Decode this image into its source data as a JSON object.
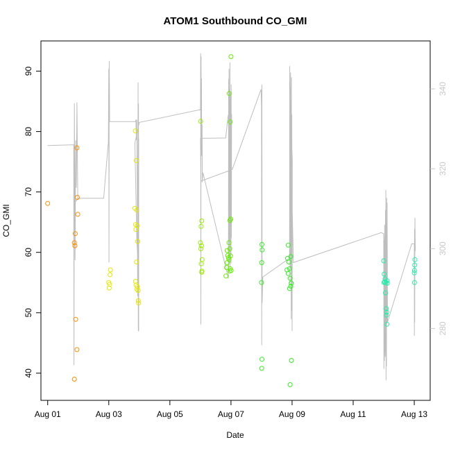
{
  "chart_data": {
    "type": "scatter",
    "title": "ATOM1 Southbound CO_GMI",
    "xlabel": "Date",
    "ylabel": "CO_GMI",
    "x_ticks": [
      "Aug 01",
      "Aug 03",
      "Aug 05",
      "Aug 07",
      "Aug 09",
      "Aug 11",
      "Aug 13"
    ],
    "y_ticks": [
      40,
      50,
      60,
      70,
      80,
      90
    ],
    "right_y_ticks": [
      280,
      300,
      320,
      340
    ],
    "xlim": [
      "2016-07-31T18:42",
      "2016-08-13T12:30"
    ],
    "ylim": [
      35.5,
      95
    ],
    "right_ylim": [
      262,
      352
    ],
    "grid": false,
    "colors": {
      "axis": "#000000",
      "line": "#bebebe",
      "right_axis": "#c8c8c8"
    },
    "series": [
      {
        "color": "#ff8c00",
        "points": [
          [
            "2016-08-01T00:00",
            68.1
          ],
          [
            "2016-08-01T21:00",
            61.6
          ],
          [
            "2016-08-01T21:20",
            61.1
          ],
          [
            "2016-08-01T21:40",
            63.1
          ],
          [
            "2016-08-01T22:00",
            48.9
          ],
          [
            "2016-08-01T23:00",
            77.3
          ],
          [
            "2016-08-01T23:20",
            69.1
          ],
          [
            "2016-08-01T23:40",
            66.3
          ],
          [
            "2016-08-01T23:00",
            43.9
          ],
          [
            "2016-08-01T21:00",
            39.0
          ]
        ]
      },
      {
        "color": "#e6e600",
        "points": [
          [
            "2016-08-03T00:00",
            55.0
          ],
          [
            "2016-08-03T00:20",
            54.1
          ],
          [
            "2016-08-03T00:40",
            54.7
          ],
          [
            "2016-08-03T01:00",
            56.3
          ],
          [
            "2016-08-03T01:20",
            57.1
          ],
          [
            "2016-08-03T20:30",
            67.3
          ],
          [
            "2016-08-03T21:00",
            64.6
          ],
          [
            "2016-08-03T21:20",
            63.8
          ],
          [
            "2016-08-03T21:40",
            75.2
          ],
          [
            "2016-08-03T20:50",
            80.1
          ],
          [
            "2016-08-03T22:00",
            67.0
          ],
          [
            "2016-08-03T22:20",
            64.4
          ],
          [
            "2016-08-03T22:40",
            61.8
          ],
          [
            "2016-08-03T21:50",
            58.4
          ],
          [
            "2016-08-03T21:00",
            55.2
          ],
          [
            "2016-08-03T21:30",
            54.6
          ],
          [
            "2016-08-03T22:00",
            53.9
          ],
          [
            "2016-08-03T22:30",
            54.3
          ],
          [
            "2016-08-03T23:00",
            53.7
          ],
          [
            "2016-08-03T23:10",
            52.0
          ],
          [
            "2016-08-03T23:20",
            51.6
          ]
        ]
      },
      {
        "color": "#99ee00",
        "points": [
          [
            "2016-08-06T00:00",
            61.6
          ],
          [
            "2016-08-06T00:20",
            60.6
          ],
          [
            "2016-08-06T00:40",
            58.1
          ],
          [
            "2016-08-06T01:00",
            56.7
          ],
          [
            "2016-08-06T01:10",
            56.9
          ],
          [
            "2016-08-06T01:20",
            58.8
          ],
          [
            "2016-08-06T00:30",
            64.3
          ],
          [
            "2016-08-06T01:00",
            65.2
          ],
          [
            "2016-08-06T00:50",
            61.1
          ],
          [
            "2016-08-06T00:10",
            81.7
          ]
        ]
      },
      {
        "color": "#66ee00",
        "points": [
          [
            "2016-08-06T20:00",
            56.1
          ],
          [
            "2016-08-06T20:30",
            57.5
          ],
          [
            "2016-08-06T21:00",
            58.3
          ],
          [
            "2016-08-06T21:30",
            59.5
          ],
          [
            "2016-08-06T21:00",
            60.3
          ],
          [
            "2016-08-06T22:00",
            59.1
          ],
          [
            "2016-08-06T22:30",
            58.8
          ],
          [
            "2016-08-06T23:00",
            56.9
          ],
          [
            "2016-08-06T23:20",
            57.3
          ],
          [
            "2016-08-06T23:40",
            59.4
          ],
          [
            "2016-08-06T23:00",
            60.6
          ],
          [
            "2016-08-06T22:30",
            61.6
          ],
          [
            "2016-08-06T23:10",
            65.3
          ],
          [
            "2016-08-06T23:50",
            65.5
          ],
          [
            "2016-08-06T22:40",
            86.3
          ],
          [
            "2016-08-06T23:20",
            81.6
          ],
          [
            "2016-08-07T00:00",
            92.4
          ],
          [
            "2016-08-07T00:10",
            57.0
          ]
        ]
      },
      {
        "color": "#33ee22",
        "points": [
          [
            "2016-08-08T00:00",
            55.0
          ],
          [
            "2016-08-08T00:10",
            58.3
          ],
          [
            "2016-08-08T00:20",
            61.3
          ],
          [
            "2016-08-08T00:30",
            60.4
          ],
          [
            "2016-08-08T00:20",
            42.3
          ],
          [
            "2016-08-08T00:10",
            40.8
          ],
          [
            "2016-08-08T20:00",
            57.1
          ],
          [
            "2016-08-08T20:30",
            59.0
          ],
          [
            "2016-08-08T21:00",
            61.2
          ],
          [
            "2016-08-08T21:30",
            58.4
          ],
          [
            "2016-08-08T21:00",
            56.5
          ],
          [
            "2016-08-08T22:00",
            57.3
          ],
          [
            "2016-08-08T22:30",
            55.7
          ],
          [
            "2016-08-08T23:00",
            54.4
          ],
          [
            "2016-08-08T23:20",
            54.9
          ],
          [
            "2016-08-08T22:00",
            54.0
          ],
          [
            "2016-08-08T23:00",
            59.3
          ],
          [
            "2016-08-08T23:30",
            42.1
          ],
          [
            "2016-08-08T22:30",
            38.1
          ]
        ]
      },
      {
        "color": "#22eeaa",
        "points": [
          [
            "2016-08-12T00:00",
            58.6
          ],
          [
            "2016-08-12T00:20",
            56.4
          ],
          [
            "2016-08-12T00:40",
            55.1
          ],
          [
            "2016-08-12T01:00",
            55.6
          ],
          [
            "2016-08-12T01:20",
            53.3
          ],
          [
            "2016-08-12T01:40",
            55.0
          ],
          [
            "2016-08-12T02:00",
            50.7
          ],
          [
            "2016-08-12T02:10",
            49.6
          ],
          [
            "2016-08-12T02:20",
            50.1
          ],
          [
            "2016-08-12T02:30",
            48.1
          ],
          [
            "2016-08-12T02:40",
            55.3
          ],
          [
            "2016-08-12T02:50",
            54.9
          ],
          [
            "2016-08-12T00:10",
            55.0
          ],
          [
            "2016-08-13T00:00",
            56.6
          ],
          [
            "2016-08-13T00:10",
            57.0
          ],
          [
            "2016-08-13T00:20",
            57.9
          ],
          [
            "2016-08-13T00:30",
            58.8
          ],
          [
            "2016-08-13T00:10",
            55.0
          ]
        ]
      }
    ],
    "line_series": {
      "axis": "right",
      "color": "#bebebe",
      "points": [
        [
          "2016-08-01T00:00",
          325.8
        ],
        [
          "2016-08-01T20:30",
          326.0
        ],
        [
          "2016-08-01T20:40",
          270.8
        ],
        [
          "2016-08-01T21:00",
          336.4
        ],
        [
          "2016-08-01T21:30",
          297.1
        ],
        [
          "2016-08-01T22:00",
          327.1
        ],
        [
          "2016-08-01T22:30",
          315.2
        ],
        [
          "2016-08-01T23:00",
          336.6
        ],
        [
          "2016-08-01T23:40",
          312.6
        ],
        [
          "2016-08-01T22:00",
          311.8
        ],
        [
          "2016-08-02T00:00",
          312.6
        ],
        [
          "2016-08-02T20:00",
          312.6
        ],
        [
          "2016-08-02T23:40",
          326.7
        ],
        [
          "2016-08-03T00:00",
          345.0
        ],
        [
          "2016-08-03T00:10",
          296.5
        ],
        [
          "2016-08-03T00:20",
          347.0
        ],
        [
          "2016-08-03T00:30",
          341.3
        ],
        [
          "2016-08-03T00:40",
          331.8
        ],
        [
          "2016-08-03T21:00",
          331.8
        ],
        [
          "2016-08-03T21:20",
          332.3
        ],
        [
          "2016-08-03T21:40",
          327.2
        ],
        [
          "2016-08-03T22:00",
          332.3
        ],
        [
          "2016-08-03T22:20",
          315.5
        ],
        [
          "2016-08-03T22:40",
          288.1
        ],
        [
          "2016-08-03T23:00",
          341.6
        ],
        [
          "2016-08-03T23:10",
          279.3
        ],
        [
          "2016-08-03T23:20",
          336.3
        ],
        [
          "2016-08-03T23:30",
          279.3
        ],
        [
          "2016-08-03T23:30",
          327.6
        ],
        [
          "2016-08-03T22:30",
          299.1
        ],
        [
          "2016-08-03T22:00",
          302.7
        ],
        [
          "2016-08-03T20:30",
          326.4
        ],
        [
          "2016-08-04T00:00",
          331.6
        ],
        [
          "2016-08-06T00:00",
          334.8
        ],
        [
          "2016-08-06T00:10",
          348.9
        ],
        [
          "2016-08-06T00:20",
          281.0
        ],
        [
          "2016-08-06T00:30",
          348.1
        ],
        [
          "2016-08-06T00:40",
          331.8
        ],
        [
          "2016-08-06T00:50",
          342.6
        ],
        [
          "2016-08-06T01:00",
          323.2
        ],
        [
          "2016-08-06T01:20",
          331.1
        ],
        [
          "2016-08-06T01:30",
          316.6
        ],
        [
          "2016-08-06T02:00",
          319.0
        ],
        [
          "2016-08-06T22:00",
          292.5
        ],
        [
          "2016-08-06T22:10",
          342.5
        ],
        [
          "2016-08-06T22:20",
          294.1
        ],
        [
          "2016-08-06T22:30",
          345.0
        ],
        [
          "2016-08-06T22:40",
          296.7
        ],
        [
          "2016-08-06T22:50",
          339.9
        ],
        [
          "2016-08-06T23:00",
          301.9
        ],
        [
          "2016-08-06T23:10",
          346.6
        ],
        [
          "2016-08-06T23:20",
          294.9
        ],
        [
          "2016-08-06T23:30",
          339.1
        ],
        [
          "2016-08-06T23:40",
          305.8
        ],
        [
          "2016-08-06T23:50",
          338.3
        ],
        [
          "2016-08-07T00:00",
          296.3
        ],
        [
          "2016-08-07T00:10",
          341.1
        ],
        [
          "2016-08-07T00:20",
          302.7
        ],
        [
          "2016-08-07T00:30",
          333.6
        ],
        [
          "2016-08-06T21:50",
          333.4
        ],
        [
          "2016-08-06T19:50",
          327.7
        ],
        [
          "2016-08-06T00:00",
          327.6
        ],
        [
          "2016-08-06T00:20",
          316.9
        ],
        [
          "2016-08-07T01:00",
          319.8
        ],
        [
          "2016-08-07T23:40",
          339.9
        ],
        [
          "2016-08-08T00:00",
          335.7
        ],
        [
          "2016-08-08T00:10",
          275.8
        ],
        [
          "2016-08-08T00:20",
          341.1
        ],
        [
          "2016-08-08T00:30",
          286.4
        ],
        [
          "2016-08-08T01:00",
          292.9
        ],
        [
          "2016-08-08T22:00",
          297.6
        ],
        [
          "2016-08-08T22:10",
          345.7
        ],
        [
          "2016-08-08T22:20",
          291.2
        ],
        [
          "2016-08-08T22:30",
          340.4
        ],
        [
          "2016-08-08T22:40",
          298.2
        ],
        [
          "2016-08-08T22:50",
          344.1
        ],
        [
          "2016-08-08T23:00",
          294.8
        ],
        [
          "2016-08-08T23:10",
          337.1
        ],
        [
          "2016-08-08T23:20",
          282.3
        ],
        [
          "2016-08-08T23:30",
          342.9
        ],
        [
          "2016-08-08T23:40",
          284.5
        ],
        [
          "2016-08-08T23:50",
          333.6
        ],
        [
          "2016-08-09T00:00",
          279.4
        ],
        [
          "2016-08-09T00:10",
          322.2
        ],
        [
          "2016-08-08T22:00",
          341.6
        ],
        [
          "2016-08-09T01:00",
          296.5
        ],
        [
          "2016-08-11T22:00",
          304.0
        ],
        [
          "2016-08-12T00:00",
          303.7
        ],
        [
          "2016-08-12T00:10",
          269.9
        ],
        [
          "2016-08-12T00:20",
          302.2
        ],
        [
          "2016-08-12T00:30",
          271.9
        ],
        [
          "2016-08-12T00:40",
          306.0
        ],
        [
          "2016-08-12T00:50",
          273.5
        ],
        [
          "2016-08-12T01:00",
          303.0
        ],
        [
          "2016-08-12T01:10",
          272.9
        ],
        [
          "2016-08-12T01:20",
          309.7
        ],
        [
          "2016-08-12T01:30",
          274.1
        ],
        [
          "2016-08-12T01:40",
          314.7
        ],
        [
          "2016-08-12T01:50",
          267.0
        ],
        [
          "2016-08-12T02:00",
          306.9
        ],
        [
          "2016-08-12T02:10",
          270.5
        ],
        [
          "2016-08-12T02:20",
          312.7
        ],
        [
          "2016-08-12T02:30",
          281.1
        ],
        [
          "2016-08-12T02:40",
          311.5
        ],
        [
          "2016-08-12T03:00",
          281.6
        ],
        [
          "2016-08-12T22:00",
          301.2
        ],
        [
          "2016-08-13T00:00",
          301.2
        ],
        [
          "2016-08-13T00:05",
          278.1
        ],
        [
          "2016-08-13T00:10",
          304.9
        ],
        [
          "2016-08-13T00:20",
          281.5
        ],
        [
          "2016-08-13T00:30",
          307.7
        ],
        [
          "2016-08-13T00:40",
          302.9
        ],
        [
          "2016-08-13T00:50",
          299.4
        ]
      ]
    }
  }
}
